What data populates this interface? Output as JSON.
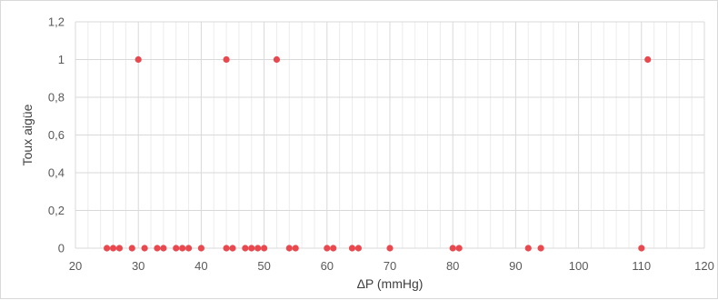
{
  "chart_data": {
    "type": "scatter",
    "xlabel": "ΔP (mmHg)",
    "ylabel": "Toux aigüe",
    "xlim": [
      20,
      120
    ],
    "ylim": [
      0,
      1.2
    ],
    "x_ticks": [
      "20",
      "30",
      "40",
      "50",
      "60",
      "70",
      "80",
      "90",
      "100",
      "110",
      "120"
    ],
    "y_ticks": [
      "0",
      "0,2",
      "0,4",
      "0,6",
      "0,8",
      "1",
      "1,2"
    ],
    "grid": true,
    "grid_minor_x": true,
    "legend": "none",
    "marker_color": "#e8484e",
    "points": [
      {
        "x": 25,
        "y": 0
      },
      {
        "x": 26,
        "y": 0
      },
      {
        "x": 27,
        "y": 0
      },
      {
        "x": 29,
        "y": 0
      },
      {
        "x": 31,
        "y": 0
      },
      {
        "x": 33,
        "y": 0
      },
      {
        "x": 34,
        "y": 0
      },
      {
        "x": 36,
        "y": 0
      },
      {
        "x": 37,
        "y": 0
      },
      {
        "x": 38,
        "y": 0
      },
      {
        "x": 40,
        "y": 0
      },
      {
        "x": 44,
        "y": 0
      },
      {
        "x": 45,
        "y": 0
      },
      {
        "x": 47,
        "y": 0
      },
      {
        "x": 48,
        "y": 0
      },
      {
        "x": 49,
        "y": 0
      },
      {
        "x": 50,
        "y": 0
      },
      {
        "x": 54,
        "y": 0
      },
      {
        "x": 55,
        "y": 0
      },
      {
        "x": 60,
        "y": 0
      },
      {
        "x": 61,
        "y": 0
      },
      {
        "x": 64,
        "y": 0
      },
      {
        "x": 65,
        "y": 0
      },
      {
        "x": 70,
        "y": 0
      },
      {
        "x": 80,
        "y": 0
      },
      {
        "x": 81,
        "y": 0
      },
      {
        "x": 92,
        "y": 0
      },
      {
        "x": 94,
        "y": 0
      },
      {
        "x": 110,
        "y": 0
      },
      {
        "x": 30,
        "y": 1
      },
      {
        "x": 44,
        "y": 1
      },
      {
        "x": 52,
        "y": 1
      },
      {
        "x": 111,
        "y": 1
      }
    ]
  }
}
